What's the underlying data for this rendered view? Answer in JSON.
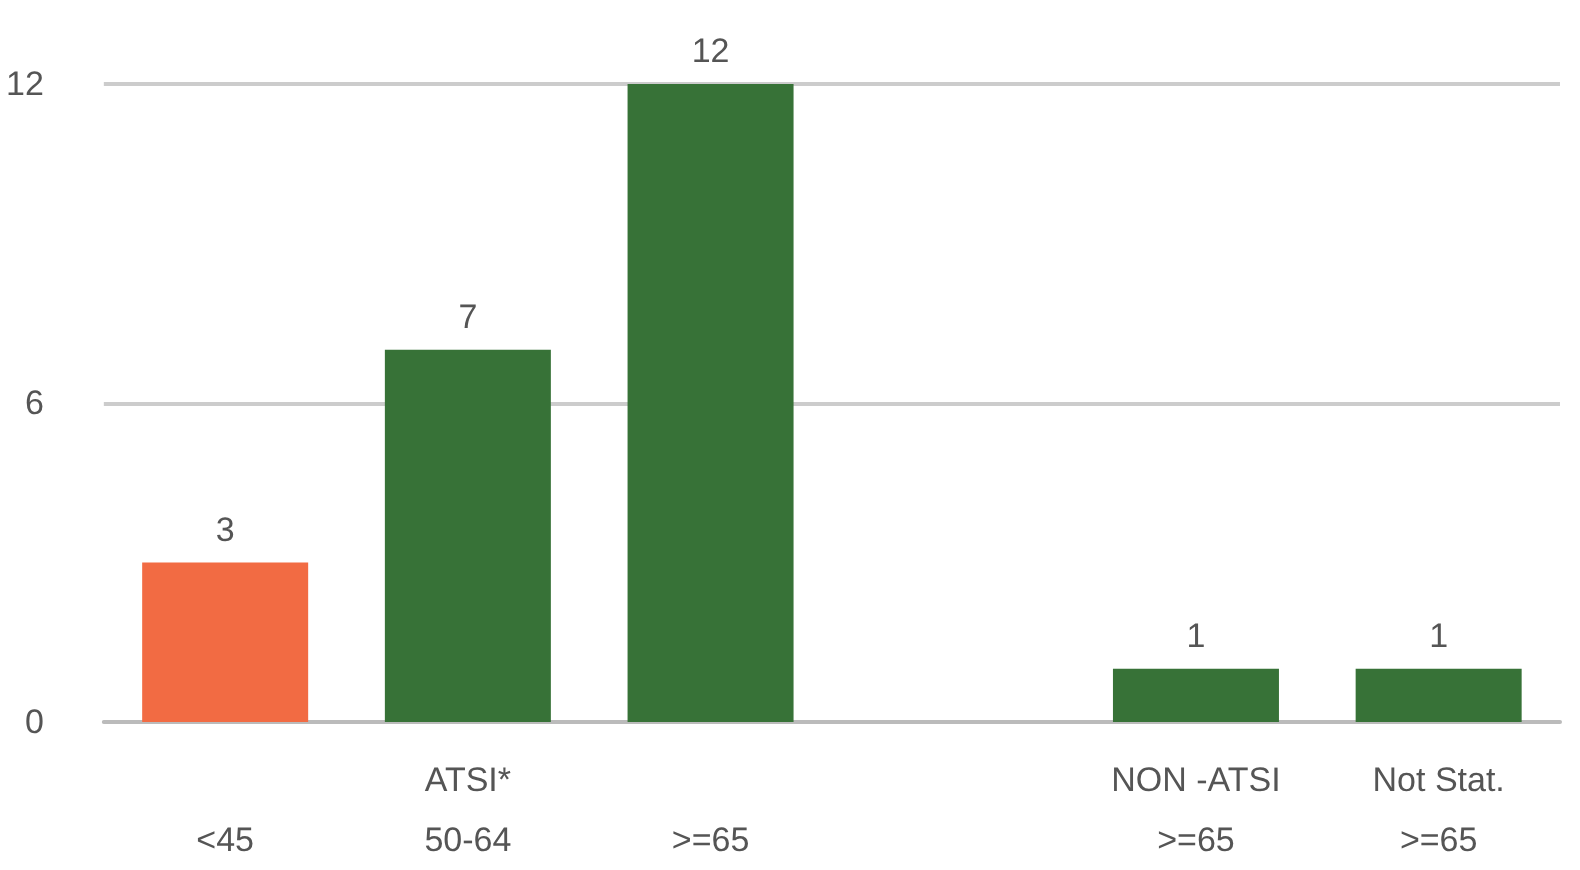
{
  "chart_data": {
    "type": "bar",
    "categories": [
      "<45",
      "ATSI*\n50-64",
      ">=65",
      null,
      "NON -ATSI\n>=65",
      "Not Stat.\n>=65"
    ],
    "values": [
      3,
      7,
      12,
      null,
      1,
      1
    ],
    "colors": [
      "#f26b43",
      "#377237",
      "#377237",
      "#377237",
      "#377237",
      "#377237"
    ],
    "ylim": [
      0,
      12
    ],
    "yticks": [
      0,
      6,
      12
    ],
    "grid": "y",
    "data_labels": true
  }
}
